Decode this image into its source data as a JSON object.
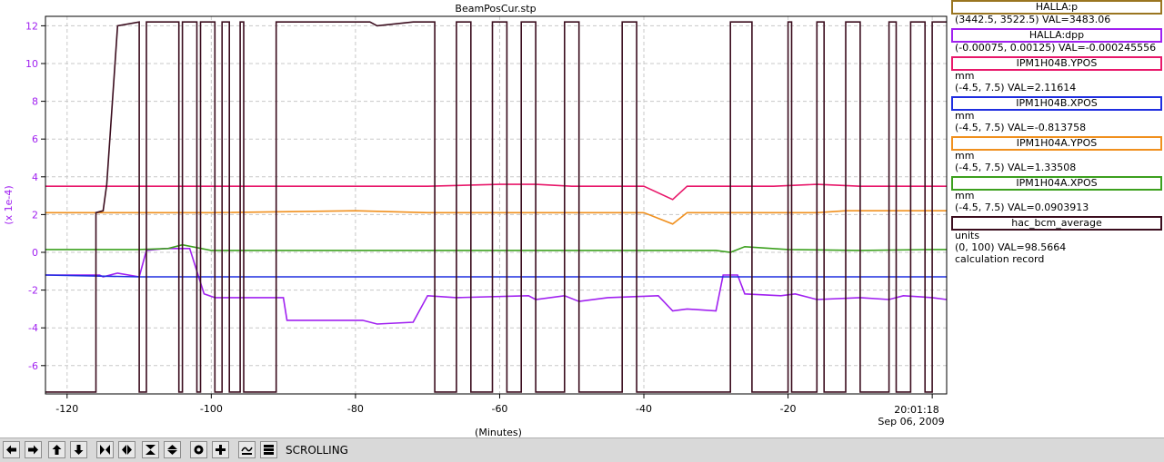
{
  "chart_data": {
    "type": "line",
    "title": "BeamPosCur.stp",
    "xlabel": "(Minutes)",
    "ylabel": "(x 1e-4)",
    "xlim": [
      -123,
      2
    ],
    "ylim": [
      -7.5,
      12.5
    ],
    "x_ticks": [
      -120,
      -100,
      -80,
      -60,
      -40,
      -20
    ],
    "x_tick_labels": [
      "-120",
      "-100",
      "-80",
      "-60",
      "-40",
      "-20"
    ],
    "y_ticks": [
      12,
      10,
      8,
      6,
      4,
      2,
      0,
      -2,
      -4,
      -6
    ],
    "y_tick_labels": [
      "12",
      "10",
      "8",
      "6",
      "4",
      "2",
      "0",
      "-2",
      "-4",
      "-6"
    ],
    "end_time": "20:01:18",
    "end_date": "Sep 06, 2009",
    "grid": true,
    "legend_position": "right",
    "series": [
      {
        "name": "HALLA:dpp",
        "color": "#a020f0",
        "x": [
          -123,
          -115.5,
          -115,
          -113,
          -110,
          -109,
          -106.5,
          -103,
          -101,
          -99.5,
          -90,
          -89.5,
          -79,
          -77,
          -72,
          -70,
          -66,
          -56,
          -55,
          -51,
          -49,
          -45,
          -38,
          -36,
          -34,
          -30,
          -29,
          -27,
          -26,
          -21,
          -19,
          -16,
          -10,
          -6,
          -4,
          0,
          2
        ],
        "y": [
          -1.2,
          -1.2,
          -1.3,
          -1.1,
          -1.3,
          0.1,
          0.2,
          0.2,
          -2.2,
          -2.4,
          -2.4,
          -3.6,
          -3.6,
          -3.8,
          -3.7,
          -2.3,
          -2.4,
          -2.3,
          -2.5,
          -2.3,
          -2.6,
          -2.4,
          -2.3,
          -3.1,
          -3.0,
          -3.1,
          -1.2,
          -1.2,
          -2.2,
          -2.3,
          -2.2,
          -2.5,
          -2.4,
          -2.5,
          -2.3,
          -2.4,
          -2.5
        ]
      },
      {
        "name": "IPM1H04B.YPOS",
        "color": "#e8186a",
        "x": [
          -123,
          -110,
          -100,
          -80,
          -70,
          -60,
          -55,
          -50,
          -40,
          -36,
          -34,
          -30,
          -28,
          -22,
          -16,
          -10,
          -6,
          0,
          2
        ],
        "y": [
          3.5,
          3.5,
          3.5,
          3.5,
          3.5,
          3.6,
          3.6,
          3.5,
          3.5,
          2.8,
          3.5,
          3.5,
          3.5,
          3.5,
          3.6,
          3.5,
          3.5,
          3.5,
          3.5
        ]
      },
      {
        "name": "IPM1H04B.XPOS",
        "color": "#1f2ee0",
        "x": [
          -123,
          -110,
          -100,
          -80,
          -70,
          -60,
          -50,
          -40,
          -30,
          -20,
          -10,
          0,
          2
        ],
        "y": [
          -1.2,
          -1.3,
          -1.3,
          -1.3,
          -1.3,
          -1.3,
          -1.3,
          -1.3,
          -1.3,
          -1.3,
          -1.3,
          -1.3,
          -1.3
        ]
      },
      {
        "name": "IPM1H04A.YPOS",
        "color": "#f0901e",
        "x": [
          -123,
          -110,
          -100,
          -80,
          -70,
          -60,
          -50,
          -40,
          -36,
          -34,
          -30,
          -28,
          -20,
          -16,
          -12,
          -8,
          0,
          2
        ],
        "y": [
          2.1,
          2.1,
          2.1,
          2.2,
          2.1,
          2.1,
          2.1,
          2.1,
          1.5,
          2.1,
          2.1,
          2.1,
          2.1,
          2.1,
          2.2,
          2.2,
          2.2,
          2.2
        ]
      },
      {
        "name": "IPM1H04A.XPOS",
        "color": "#3ca01e",
        "x": [
          -123,
          -110,
          -106,
          -104,
          -100,
          -80,
          -70,
          -60,
          -50,
          -40,
          -30,
          -28,
          -26,
          -20,
          -10,
          0,
          2
        ],
        "y": [
          0.15,
          0.15,
          0.2,
          0.4,
          0.1,
          0.1,
          0.1,
          0.1,
          0.1,
          0.1,
          0.1,
          0.0,
          0.3,
          0.15,
          0.1,
          0.15,
          0.15
        ]
      },
      {
        "name": "hac_bcm_average",
        "color": "#3b0d1e",
        "x": [
          -123,
          -116,
          -116,
          -115,
          -114.5,
          -113,
          -110,
          -110,
          -109,
          -109,
          -104.5,
          -104.5,
          -104,
          -104,
          -102,
          -102,
          -101.5,
          -101.5,
          -99.5,
          -99.5,
          -98.5,
          -98.5,
          -97.5,
          -97.5,
          -96,
          -96,
          -95.5,
          -95.5,
          -91,
          -91,
          -90,
          -90,
          -78,
          -77,
          -72,
          -70,
          -69,
          -69,
          -66,
          -66,
          -64,
          -64,
          -61,
          -61,
          -59,
          -59,
          -57,
          -57,
          -55,
          -55,
          -51,
          -51,
          -49,
          -49,
          -43,
          -43,
          -41,
          -41,
          -36,
          -36,
          -30,
          -30,
          -28,
          -28,
          -25,
          -25,
          -20,
          -20,
          -19.5,
          -19.5,
          -16,
          -16,
          -15,
          -15,
          -12,
          -12,
          -10,
          -10,
          -6,
          -6,
          -5,
          -5,
          -3,
          -3,
          -1,
          -1,
          0,
          0,
          2
        ],
        "y": [
          -7.4,
          -7.4,
          2.1,
          2.2,
          3.6,
          12,
          12.2,
          -7.4,
          -7.4,
          12.2,
          12.2,
          -7.4,
          -7.4,
          12.2,
          12.2,
          -7.4,
          -7.4,
          12.2,
          12.2,
          -7.4,
          -7.4,
          12.2,
          12.2,
          -7.4,
          -7.4,
          12.2,
          12.2,
          -7.4,
          -7.4,
          12.2,
          12.2,
          12.2,
          12.2,
          12.0,
          12.2,
          12.2,
          12.2,
          -7.4,
          -7.4,
          12.2,
          12.2,
          -7.4,
          -7.4,
          12.2,
          12.2,
          -7.4,
          -7.4,
          12.2,
          12.2,
          -7.4,
          -7.4,
          12.2,
          12.2,
          -7.4,
          -7.4,
          12.2,
          12.2,
          -7.4,
          -7.4,
          -7.4,
          -7.4,
          -7.4,
          -7.4,
          12.2,
          12.2,
          -7.4,
          -7.4,
          12.2,
          12.2,
          -7.4,
          -7.4,
          12.2,
          12.2,
          -7.4,
          -7.4,
          12.2,
          12.2,
          -7.4,
          -7.4,
          12.2,
          12.2,
          -7.4,
          -7.4,
          12.2,
          12.2,
          -7.4,
          -7.4,
          12.2,
          12.2
        ]
      }
    ]
  },
  "legend": [
    {
      "label": "HALLA:p",
      "color": "#9a7520",
      "lines": [
        "(3442.5, 3522.5) VAL=3483.06"
      ]
    },
    {
      "label": "HALLA:dpp",
      "color": "#a020f0",
      "lines": [
        "(-0.00075, 0.00125) VAL=-0.000245556"
      ]
    },
    {
      "label": "IPM1H04B.YPOS",
      "color": "#e8186a",
      "lines": [
        "mm",
        "(-4.5, 7.5) VAL=2.11614"
      ]
    },
    {
      "label": "IPM1H04B.XPOS",
      "color": "#1f2ee0",
      "lines": [
        "mm",
        "(-4.5, 7.5) VAL=-0.813758"
      ]
    },
    {
      "label": "IPM1H04A.YPOS",
      "color": "#f0901e",
      "lines": [
        "mm",
        "(-4.5, 7.5) VAL=1.33508"
      ]
    },
    {
      "label": "IPM1H04A.XPOS",
      "color": "#3ca01e",
      "lines": [
        "mm",
        "(-4.5, 7.5) VAL=0.0903913"
      ]
    },
    {
      "label": "hac_bcm_average",
      "color": "#3b0d1e",
      "lines": [
        "units",
        "(0, 100) VAL=98.5664",
        "calculation record"
      ]
    }
  ],
  "toolbar": {
    "mode_label": "SCROLLING",
    "buttons": [
      "scroll-left-icon",
      "scroll-right-icon",
      "scroll-up-icon",
      "scroll-down-icon",
      "compress-horizontal-icon",
      "expand-horizontal-icon",
      "compress-vertical-icon",
      "expand-vertical-icon",
      "zoom-out-icon",
      "zoom-in-icon",
      "autoscale-icon",
      "reset-icon"
    ]
  }
}
